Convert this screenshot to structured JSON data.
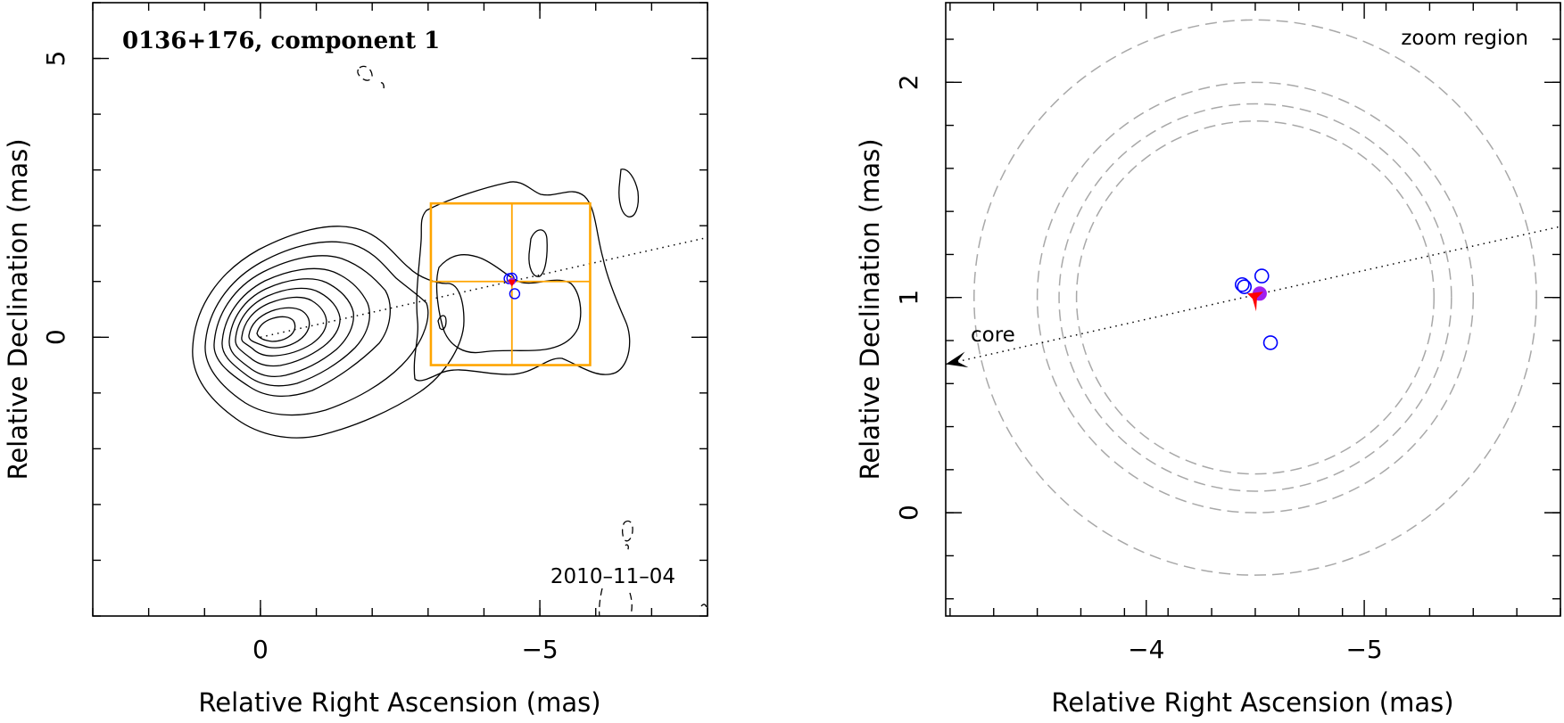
{
  "chart_data": [
    {
      "type": "scatter",
      "panel": "overview",
      "title": "0136+176, component 1",
      "annotation": "2010–11–04",
      "xlabel": "Relative Right Ascension  (mas)",
      "ylabel": "Relative Declination  (mas)",
      "xlim": [
        3,
        -8
      ],
      "ylim": [
        -5.0,
        6.0
      ],
      "xticks": [
        0,
        -5
      ],
      "xtick_labels": [
        "0",
        "−5"
      ],
      "yticks": [
        5,
        0
      ],
      "ytick_labels": [
        "5",
        "0"
      ],
      "contour_peak": [
        0,
        0
      ],
      "component_position": [
        -4.5,
        1.0
      ],
      "component_fits": [
        {
          "ra": -4.45,
          "dec": 1.05
        },
        {
          "ra": -4.5,
          "dec": 1.06
        },
        {
          "ra": -4.55,
          "dec": 0.78
        }
      ],
      "path_to_core": [
        [
          0,
          0
        ],
        [
          -8.5,
          1.9
        ]
      ],
      "zoom_box": {
        "ra": [
          -3.05,
          -5.9
        ],
        "dec": [
          -0.5,
          2.4
        ]
      },
      "colors": {
        "contours": "#000000",
        "zoom_box": "#ffa500",
        "fits": "#0000ff",
        "component": "#ff0000",
        "component_fill": "#a020f0"
      }
    },
    {
      "type": "scatter",
      "panel": "zoom",
      "title": "zoom region",
      "arrow_label": "core",
      "xlabel": "Relative Right Ascension  (mas)",
      "ylabel": "Relative Declination  (mas)",
      "xlim": [
        -3.08,
        -5.9
      ],
      "ylim": [
        -0.48,
        2.37
      ],
      "xticks": [
        -4,
        -5
      ],
      "xtick_labels": [
        "−4",
        "−5"
      ],
      "yticks": [
        2,
        1,
        0
      ],
      "ytick_labels": [
        "2",
        "1",
        "0"
      ],
      "component": {
        "ra": -4.5,
        "dec": 1.01
      },
      "component_fits": [
        {
          "ra": -4.44,
          "dec": 1.06
        },
        {
          "ra": -4.45,
          "dec": 1.05
        },
        {
          "ra": -4.53,
          "dec": 1.1
        },
        {
          "ra": -4.57,
          "dec": 0.79
        }
      ],
      "uncertainty_circles": [
        {
          "ra": -4.5,
          "dec": 1.0,
          "r": 1.29
        },
        {
          "ra": -4.5,
          "dec": 1.0,
          "r": 1.0
        },
        {
          "ra": -4.5,
          "dec": 1.0,
          "r": 0.9
        },
        {
          "ra": -4.5,
          "dec": 1.0,
          "r": 0.82
        }
      ],
      "path_to_core": [
        [
          -3.08,
          0.69
        ],
        [
          -5.9,
          1.33
        ]
      ],
      "colors": {
        "circles": "#a8a8a8",
        "fits": "#0000ff",
        "component": "#ff0000",
        "component_fill": "#a020f0"
      }
    }
  ]
}
